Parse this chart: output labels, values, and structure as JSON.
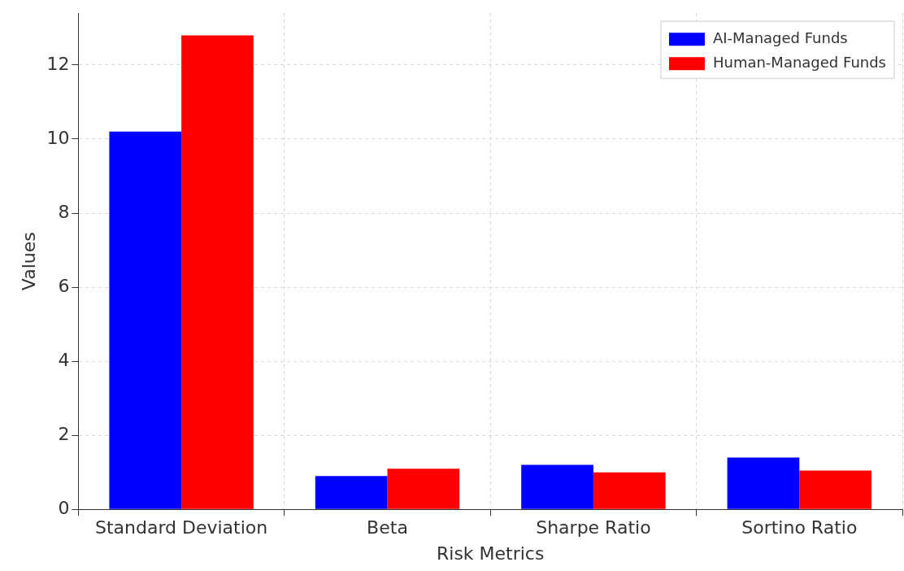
{
  "chart_data": {
    "type": "bar",
    "xlabel": "Risk Metrics",
    "ylabel": "Values",
    "categories": [
      "Standard Deviation",
      "Beta",
      "Sharpe Ratio",
      "Sortino Ratio"
    ],
    "series": [
      {
        "name": "AI-Managed Funds",
        "color": "#0000ff",
        "values": [
          10.2,
          0.9,
          1.2,
          1.4
        ]
      },
      {
        "name": "Human-Managed Funds",
        "color": "#ff0000",
        "values": [
          12.8,
          1.1,
          1.0,
          1.05
        ]
      }
    ],
    "ylim": [
      0,
      13.4
    ],
    "yticks": [
      0,
      2,
      4,
      6,
      8,
      10,
      12
    ],
    "grid": true,
    "legend": "top right"
  }
}
